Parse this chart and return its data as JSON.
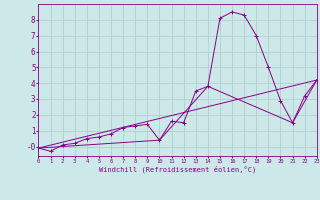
{
  "xlabel": "Windchill (Refroidissement éolien,°C)",
  "ylabel": "",
  "background_color": "#cce8e8",
  "grid_color": "#aacccc",
  "line_color": "#880088",
  "xlim": [
    0,
    23
  ],
  "ylim": [
    -0.6,
    9.0
  ],
  "xticks": [
    0,
    1,
    2,
    3,
    4,
    5,
    6,
    7,
    8,
    9,
    10,
    11,
    12,
    13,
    14,
    15,
    16,
    17,
    18,
    19,
    20,
    21,
    22,
    23
  ],
  "yticks": [
    0,
    1,
    2,
    3,
    4,
    5,
    6,
    7,
    8
  ],
  "series1_x": [
    0,
    1,
    2,
    3,
    4,
    5,
    6,
    7,
    8,
    9,
    10,
    11,
    12,
    13,
    14,
    15,
    16,
    17,
    18,
    19,
    20,
    21,
    22,
    23
  ],
  "series1_y": [
    -0.1,
    -0.3,
    0.1,
    0.2,
    0.5,
    0.6,
    0.8,
    1.2,
    1.3,
    1.4,
    0.4,
    1.6,
    1.5,
    3.5,
    3.8,
    8.1,
    8.5,
    8.3,
    7.0,
    5.0,
    2.9,
    1.5,
    3.2,
    4.2
  ],
  "series2_x": [
    0,
    23
  ],
  "series2_y": [
    -0.1,
    4.2
  ],
  "series3_x": [
    0,
    10,
    14,
    21,
    23
  ],
  "series3_y": [
    -0.1,
    0.4,
    3.8,
    1.5,
    4.2
  ]
}
